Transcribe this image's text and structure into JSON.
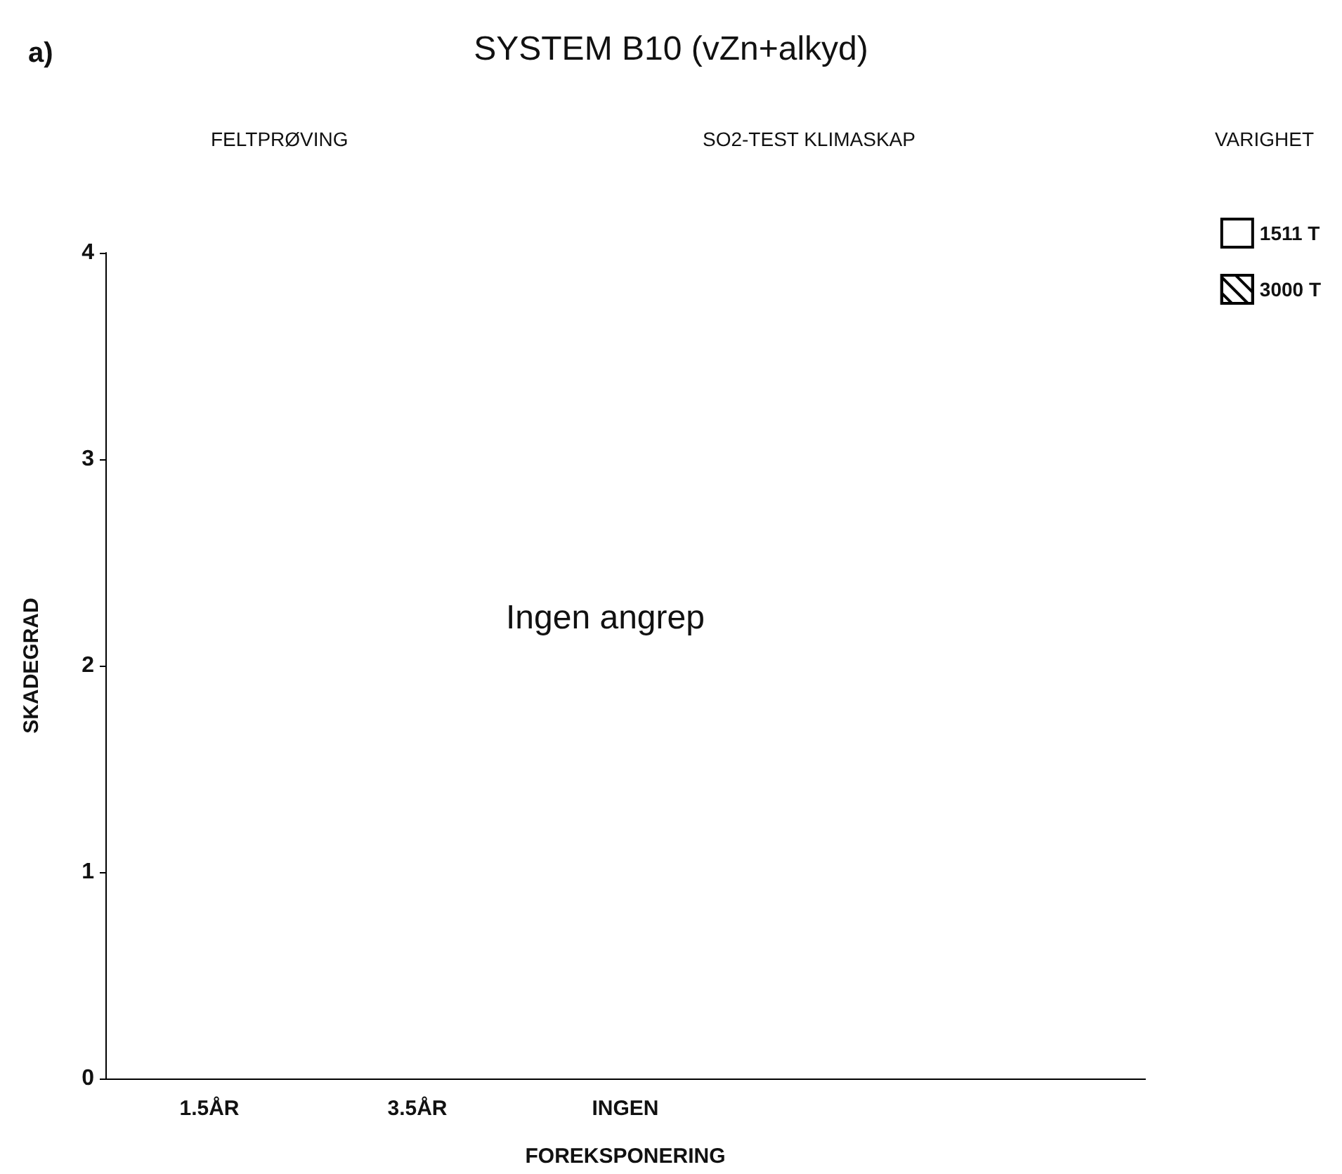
{
  "chart_data": {
    "type": "bar",
    "title": "SYSTEM B10 (vZn+alkyd)",
    "xlabel": "FOREKSPONERING",
    "ylabel": "SKADEGRAD",
    "legend_title": "VARIGHET",
    "categories": [
      "1.5ÅR",
      "3.5ÅR",
      "INGEN",
      null,
      null
    ],
    "series": [
      {
        "name": "1511 T",
        "color": "#ffffff",
        "values": [
          0,
          0,
          0,
          0,
          0
        ]
      },
      {
        "name": "3000 T",
        "color": "#ffffff",
        "values": [
          0,
          0,
          0,
          0,
          0
        ]
      }
    ],
    "ylim": [
      0,
      4
    ],
    "yticks": [
      0,
      1,
      2,
      3,
      4
    ],
    "grid": false,
    "legend": "top right",
    "annotations": [
      "a)",
      "FELTPRØVING",
      "SO2-TEST KLIMASKAP",
      "Ingen angrep"
    ]
  }
}
